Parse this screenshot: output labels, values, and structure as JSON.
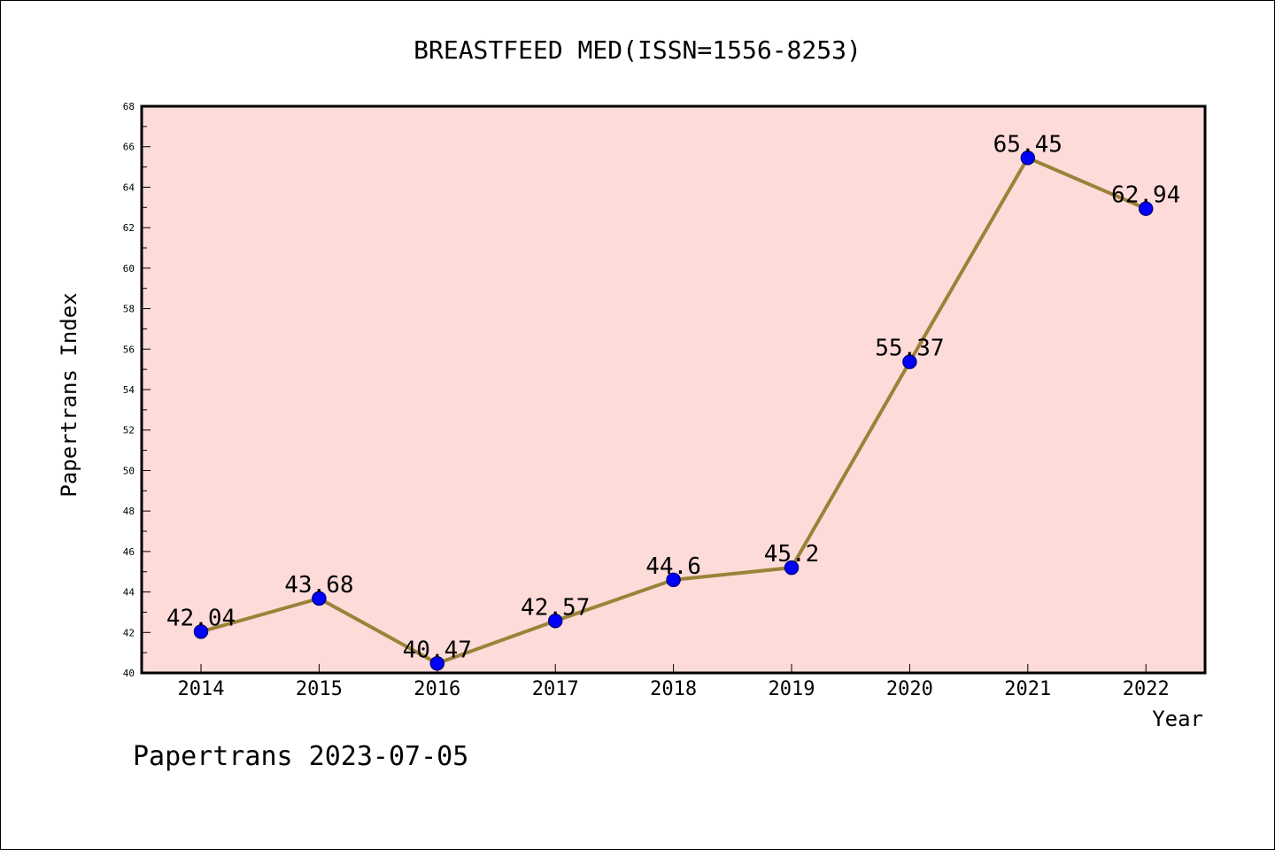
{
  "chart_data": {
    "type": "line",
    "title": "BREASTFEED MED(ISSN=1556-8253)",
    "xlabel": "Year",
    "ylabel": "Papertrans Index",
    "x": [
      "2014",
      "2015",
      "2016",
      "2017",
      "2018",
      "2019",
      "2020",
      "2021",
      "2022"
    ],
    "values": [
      42.04,
      43.68,
      40.47,
      42.57,
      44.6,
      45.2,
      55.37,
      65.45,
      62.94
    ],
    "value_labels": [
      "42.04",
      "43.68",
      "40.47",
      "42.57",
      "44.6",
      "45.2",
      "55.37",
      "65.45",
      "62.94"
    ],
    "ylim": [
      40,
      68
    ],
    "y_ticks": [
      "40",
      "42",
      "44",
      "46",
      "48",
      "50",
      "52",
      "54",
      "56",
      "58",
      "60",
      "62",
      "64",
      "66",
      "68"
    ],
    "grid": false,
    "legend": "none",
    "colors": {
      "plot_background": "#fddbd9",
      "line": "#9a8238",
      "marker_fill": "#0000ff",
      "marker_stroke": "#00008b",
      "frame": "#000000"
    }
  },
  "footer": {
    "text": "Papertrans 2023-07-05"
  }
}
